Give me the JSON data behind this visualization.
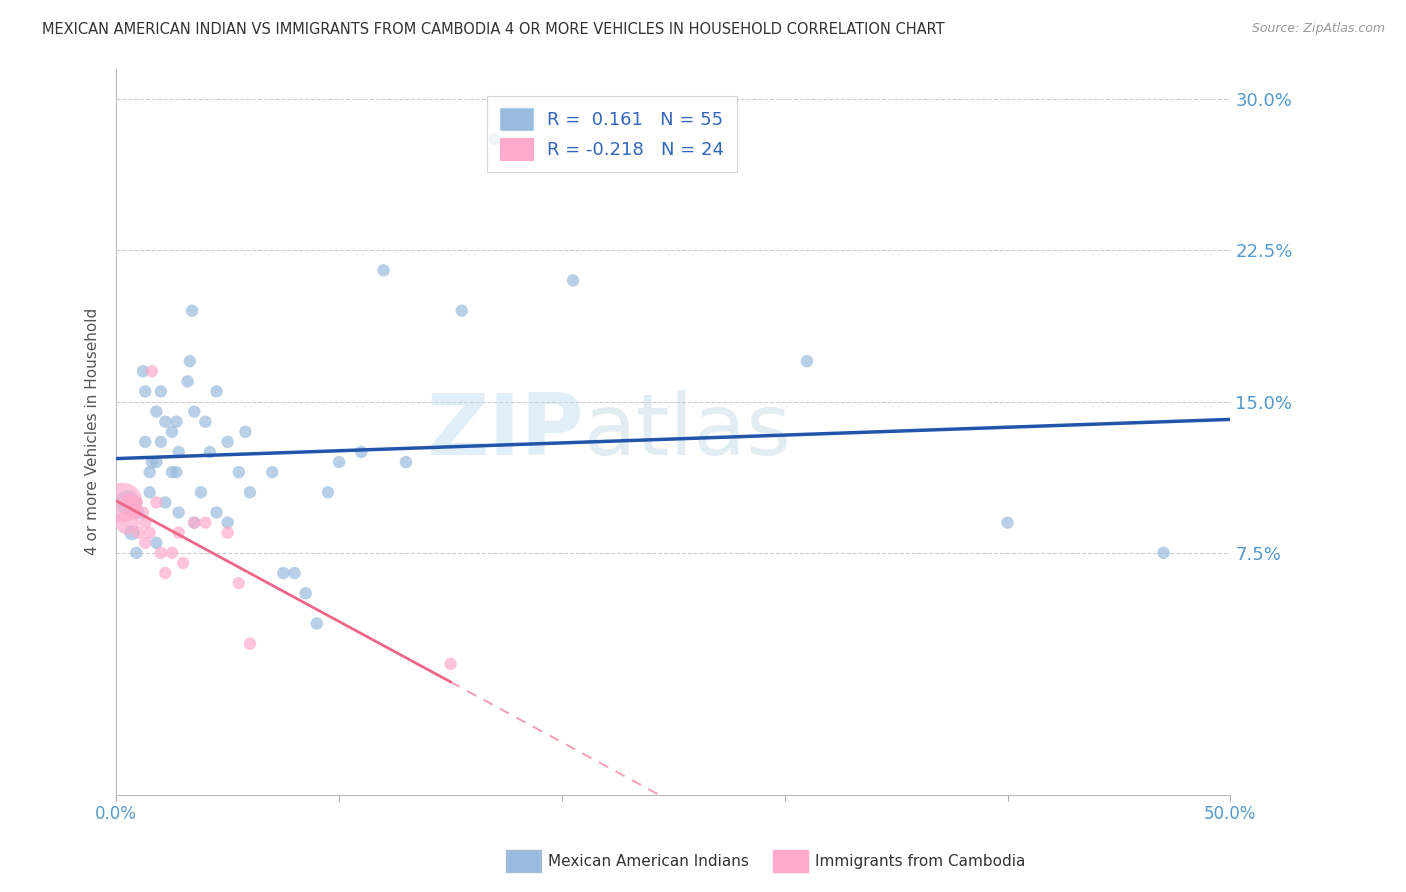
{
  "title": "MEXICAN AMERICAN INDIAN VS IMMIGRANTS FROM CAMBODIA 4 OR MORE VEHICLES IN HOUSEHOLD CORRELATION CHART",
  "source": "Source: ZipAtlas.com",
  "ylabel": "4 or more Vehicles in Household",
  "x_min": 0.0,
  "x_max": 0.5,
  "y_min": -0.045,
  "y_max": 0.315,
  "x_ticks": [
    0.0,
    0.1,
    0.2,
    0.3,
    0.4,
    0.5
  ],
  "x_tick_labels": [
    "0.0%",
    "",
    "",
    "",
    "",
    "50.0%"
  ],
  "y_ticks": [
    0.075,
    0.15,
    0.225,
    0.3
  ],
  "y_tick_labels": [
    "7.5%",
    "15.0%",
    "22.5%",
    "30.0%"
  ],
  "blue_R": "0.161",
  "blue_N": "55",
  "pink_R": "-0.218",
  "pink_N": "24",
  "blue_color": "#99BBDD",
  "pink_color": "#FFAACC",
  "blue_line_color": "#2255AA",
  "pink_line_color": "#EE6688",
  "watermark_zip": "ZIP",
  "watermark_atlas": "atlas",
  "legend_label_blue": "Mexican American Indians",
  "legend_label_pink": "Immigrants from Cambodia",
  "blue_scatter_x": [
    0.005,
    0.007,
    0.009,
    0.009,
    0.01,
    0.012,
    0.013,
    0.013,
    0.015,
    0.015,
    0.016,
    0.018,
    0.018,
    0.018,
    0.02,
    0.02,
    0.022,
    0.022,
    0.025,
    0.025,
    0.027,
    0.027,
    0.028,
    0.028,
    0.032,
    0.033,
    0.034,
    0.035,
    0.035,
    0.038,
    0.04,
    0.042,
    0.045,
    0.045,
    0.05,
    0.05,
    0.055,
    0.058,
    0.06,
    0.07,
    0.075,
    0.08,
    0.085,
    0.09,
    0.095,
    0.1,
    0.11,
    0.12,
    0.13,
    0.155,
    0.17,
    0.205,
    0.31,
    0.4,
    0.47
  ],
  "blue_scatter_y": [
    0.1,
    0.085,
    0.1,
    0.075,
    0.095,
    0.165,
    0.155,
    0.13,
    0.115,
    0.105,
    0.12,
    0.145,
    0.12,
    0.08,
    0.155,
    0.13,
    0.14,
    0.1,
    0.135,
    0.115,
    0.14,
    0.115,
    0.125,
    0.095,
    0.16,
    0.17,
    0.195,
    0.145,
    0.09,
    0.105,
    0.14,
    0.125,
    0.155,
    0.095,
    0.13,
    0.09,
    0.115,
    0.135,
    0.105,
    0.115,
    0.065,
    0.065,
    0.055,
    0.04,
    0.105,
    0.12,
    0.125,
    0.215,
    0.12,
    0.195,
    0.28,
    0.21,
    0.17,
    0.09,
    0.075
  ],
  "blue_scatter_size": [
    300,
    120,
    80,
    80,
    80,
    80,
    80,
    80,
    80,
    80,
    80,
    80,
    80,
    80,
    80,
    80,
    80,
    80,
    80,
    80,
    80,
    80,
    80,
    80,
    80,
    80,
    80,
    80,
    80,
    80,
    80,
    80,
    80,
    80,
    80,
    80,
    80,
    80,
    80,
    80,
    80,
    80,
    80,
    80,
    80,
    80,
    80,
    80,
    80,
    80,
    80,
    80,
    80,
    80,
    80
  ],
  "pink_scatter_x": [
    0.003,
    0.005,
    0.006,
    0.007,
    0.008,
    0.009,
    0.01,
    0.012,
    0.013,
    0.013,
    0.015,
    0.016,
    0.018,
    0.02,
    0.022,
    0.025,
    0.028,
    0.03,
    0.035,
    0.04,
    0.05,
    0.055,
    0.06,
    0.15
  ],
  "pink_scatter_y": [
    0.1,
    0.09,
    0.1,
    0.1,
    0.095,
    0.1,
    0.085,
    0.095,
    0.09,
    0.08,
    0.085,
    0.165,
    0.1,
    0.075,
    0.065,
    0.075,
    0.085,
    0.07,
    0.09,
    0.09,
    0.085,
    0.06,
    0.03,
    0.02
  ],
  "pink_scatter_size": [
    800,
    300,
    150,
    120,
    100,
    80,
    80,
    80,
    80,
    80,
    80,
    80,
    80,
    80,
    80,
    80,
    80,
    80,
    80,
    80,
    80,
    80,
    80,
    80
  ]
}
